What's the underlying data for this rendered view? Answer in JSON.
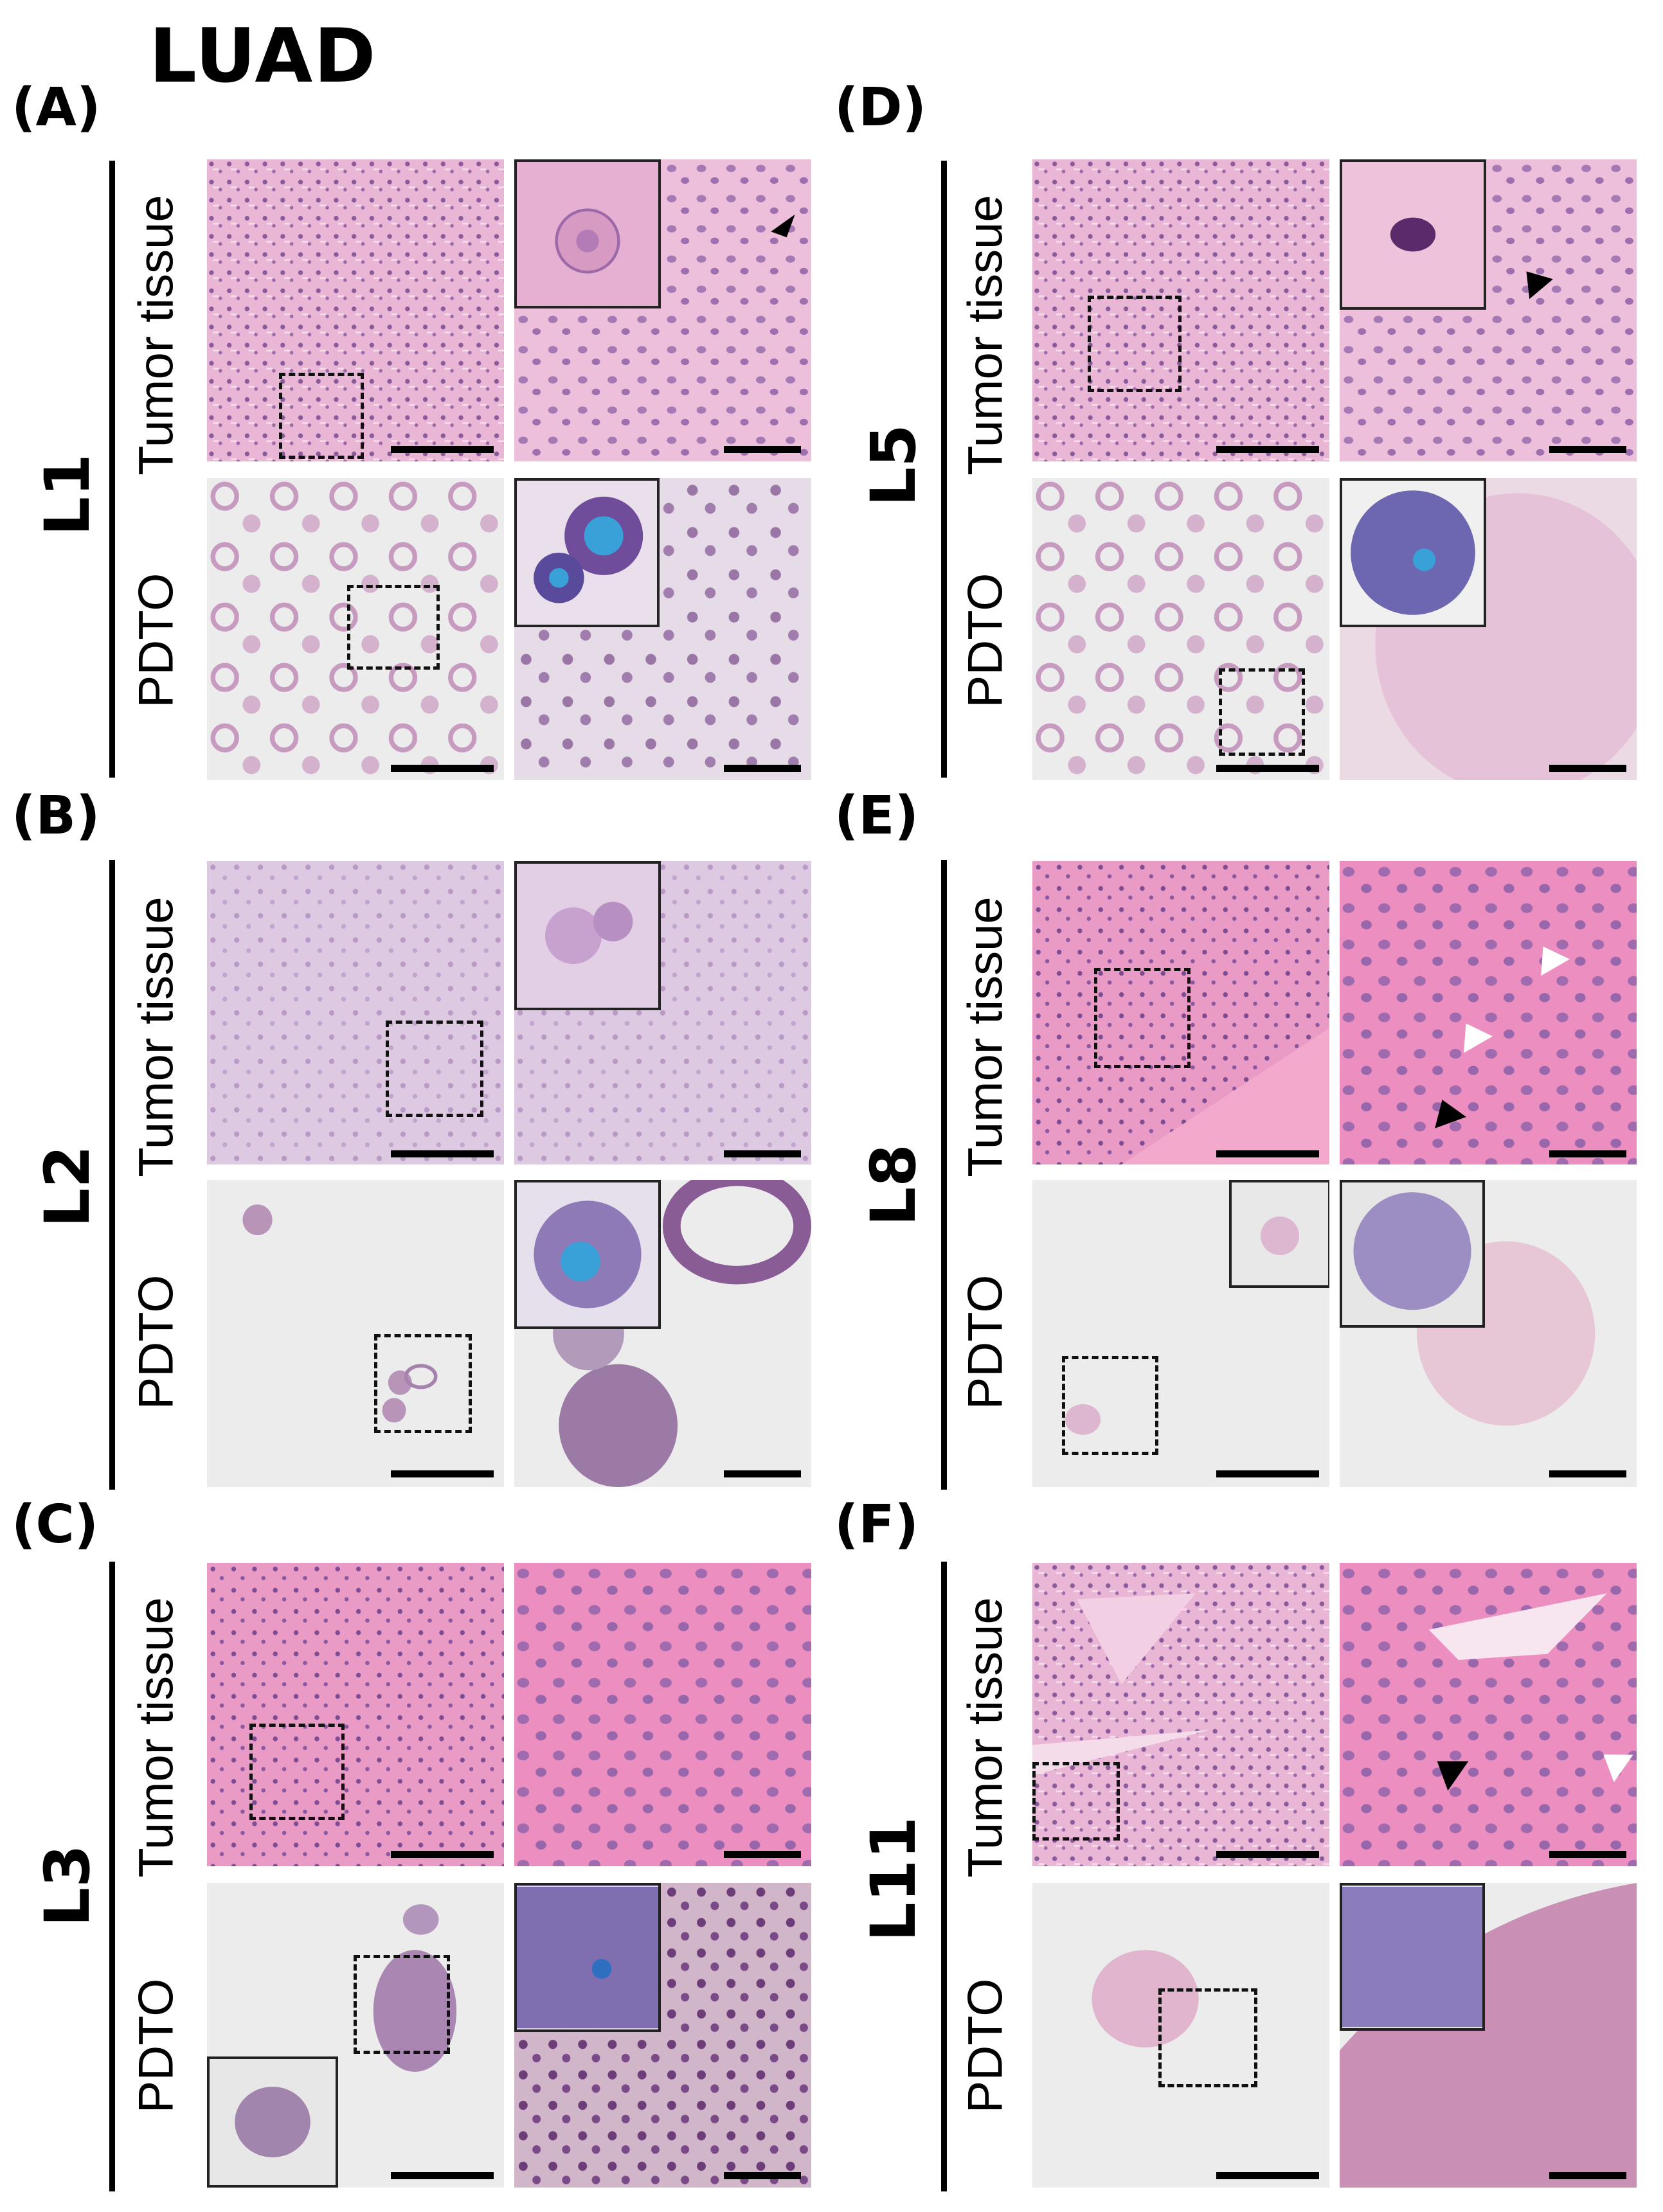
{
  "title": "LUAD",
  "panels": [
    {
      "label": "(A)",
      "case": "L1"
    },
    {
      "label": "(B)",
      "case": "L2"
    },
    {
      "label": "(C)",
      "case": "L3"
    },
    {
      "label": "(D)",
      "case": "L5"
    },
    {
      "label": "(E)",
      "case": "L8"
    },
    {
      "label": "(F)",
      "case": "L11"
    }
  ],
  "rows": {
    "tissue": "Tumor tissue",
    "organoid": "PDTO"
  },
  "colors": {
    "he_pink": "#e6a8cf",
    "he_pink_light": "#f0cfe3",
    "he_pink_bright": "#f28fbf",
    "he_purple": "#7b4a8c",
    "pdto_bg": "#ececec",
    "alcian_blue": "#3aa0d8"
  }
}
